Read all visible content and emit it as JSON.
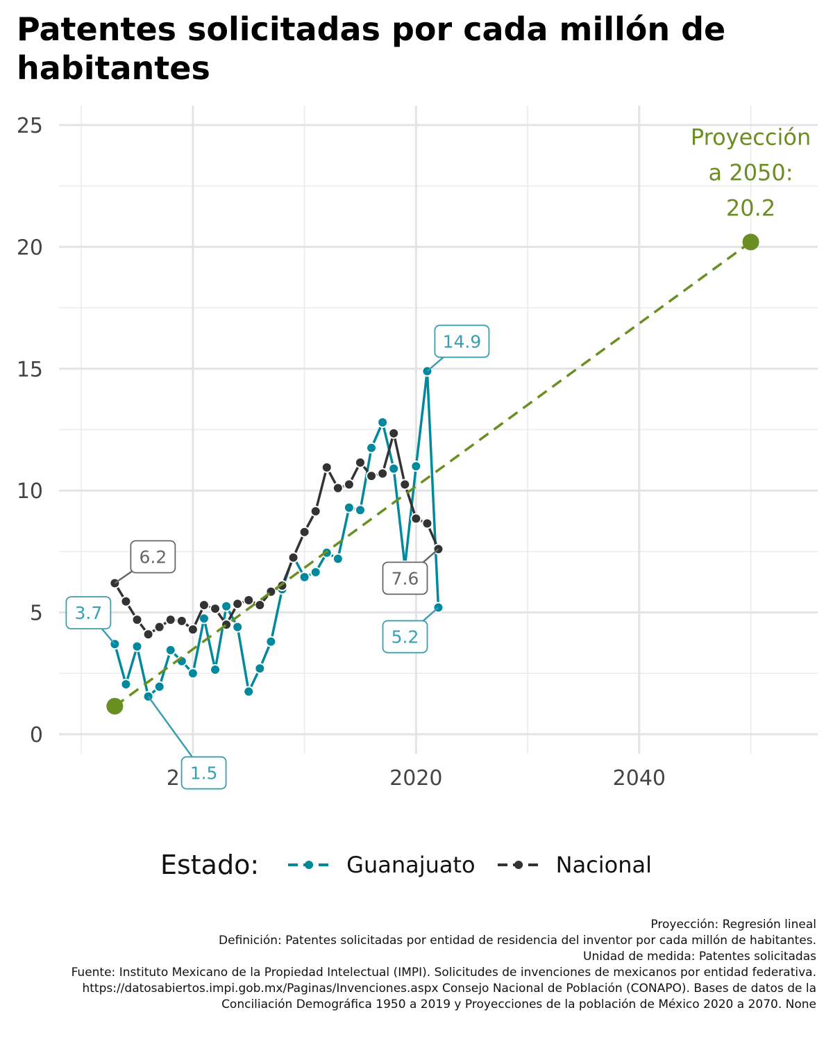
{
  "title": "Patentes solicitadas por cada millón de habitantes",
  "legend": {
    "title": "Estado:",
    "items": [
      {
        "label": "Guanajuato",
        "color": "#00889C"
      },
      {
        "label": "Nacional",
        "color": "#333333"
      }
    ]
  },
  "caption": {
    "lines": [
      "Proyección: Regresión lineal",
      "Definición: Patentes solicitadas por entidad de residencia del inventor por cada millón de habitantes.",
      "Unidad de medida: Patentes solicitadas",
      "Fuente: Instituto Mexicano de la Propiedad Intelectual (IMPI). Solicitudes de invenciones de mexicanos por entidad federativa. https://datosabiertos.impi.gob.mx/Paginas/Invenciones.aspx Consejo Nacional de Población (CONAPO). Bases de datos de la Conciliación Demográfica 1950 a 2019 y Proyecciones de la población de México 2020 a 2070. None"
    ]
  },
  "chart_data": {
    "type": "line",
    "title": "Patentes solicitadas por cada millón de habitantes",
    "xlabel": "",
    "ylabel": "",
    "xlim": [
      1988,
      2056
    ],
    "ylim": [
      -0.8,
      25.8
    ],
    "x_ticks": [
      2000,
      2020,
      2040
    ],
    "y_ticks": [
      0,
      5,
      10,
      15,
      20,
      25
    ],
    "grid": true,
    "legend_position": "bottom",
    "series": [
      {
        "name": "Guanajuato",
        "color": "#00889C",
        "x": [
          1993,
          1994,
          1995,
          1996,
          1997,
          1998,
          1999,
          2000,
          2001,
          2002,
          2003,
          2004,
          2005,
          2006,
          2007,
          2008,
          2009,
          2010,
          2011,
          2012,
          2013,
          2014,
          2015,
          2016,
          2017,
          2018,
          2019,
          2020,
          2021,
          2022
        ],
        "y": [
          3.7,
          2.05,
          3.6,
          1.55,
          1.95,
          3.45,
          3.0,
          2.5,
          4.75,
          2.65,
          5.25,
          4.4,
          1.75,
          2.7,
          3.8,
          5.95,
          7.3,
          6.45,
          6.65,
          7.45,
          7.2,
          9.3,
          9.2,
          11.75,
          12.8,
          10.9,
          6.9,
          11.0,
          14.9,
          5.2
        ]
      },
      {
        "name": "Nacional",
        "color": "#333333",
        "x": [
          1993,
          1994,
          1995,
          1996,
          1997,
          1998,
          1999,
          2000,
          2001,
          2002,
          2003,
          2004,
          2005,
          2006,
          2007,
          2008,
          2009,
          2010,
          2011,
          2012,
          2013,
          2014,
          2015,
          2016,
          2017,
          2018,
          2019,
          2020,
          2021,
          2022
        ],
        "y": [
          6.2,
          5.45,
          4.7,
          4.1,
          4.4,
          4.7,
          4.65,
          4.3,
          5.3,
          5.15,
          4.5,
          5.35,
          5.5,
          5.3,
          5.85,
          6.1,
          7.25,
          8.3,
          9.15,
          10.95,
          10.1,
          10.25,
          11.15,
          10.6,
          10.7,
          12.35,
          10.25,
          8.85,
          8.65,
          7.6
        ]
      }
    ],
    "projection": {
      "color": "#6B8E23",
      "style": "dashed",
      "x": [
        1993,
        2050
      ],
      "y": [
        1.15,
        20.2
      ],
      "label_lines": [
        "Proyección",
        "a 2050:",
        "20.2"
      ]
    },
    "annotations": [
      {
        "text": "3.7",
        "series": "Guanajuato",
        "x": 1993,
        "y": 3.7
      },
      {
        "text": "1.5",
        "series": "Guanajuato",
        "x": 1996,
        "y": 1.55
      },
      {
        "text": "14.9",
        "series": "Guanajuato",
        "x": 2021,
        "y": 14.9
      },
      {
        "text": "5.2",
        "series": "Guanajuato",
        "x": 2022,
        "y": 5.2
      },
      {
        "text": "6.2",
        "series": "Nacional",
        "x": 1993,
        "y": 6.2
      },
      {
        "text": "7.6",
        "series": "Nacional",
        "x": 2022,
        "y": 7.6
      }
    ]
  }
}
